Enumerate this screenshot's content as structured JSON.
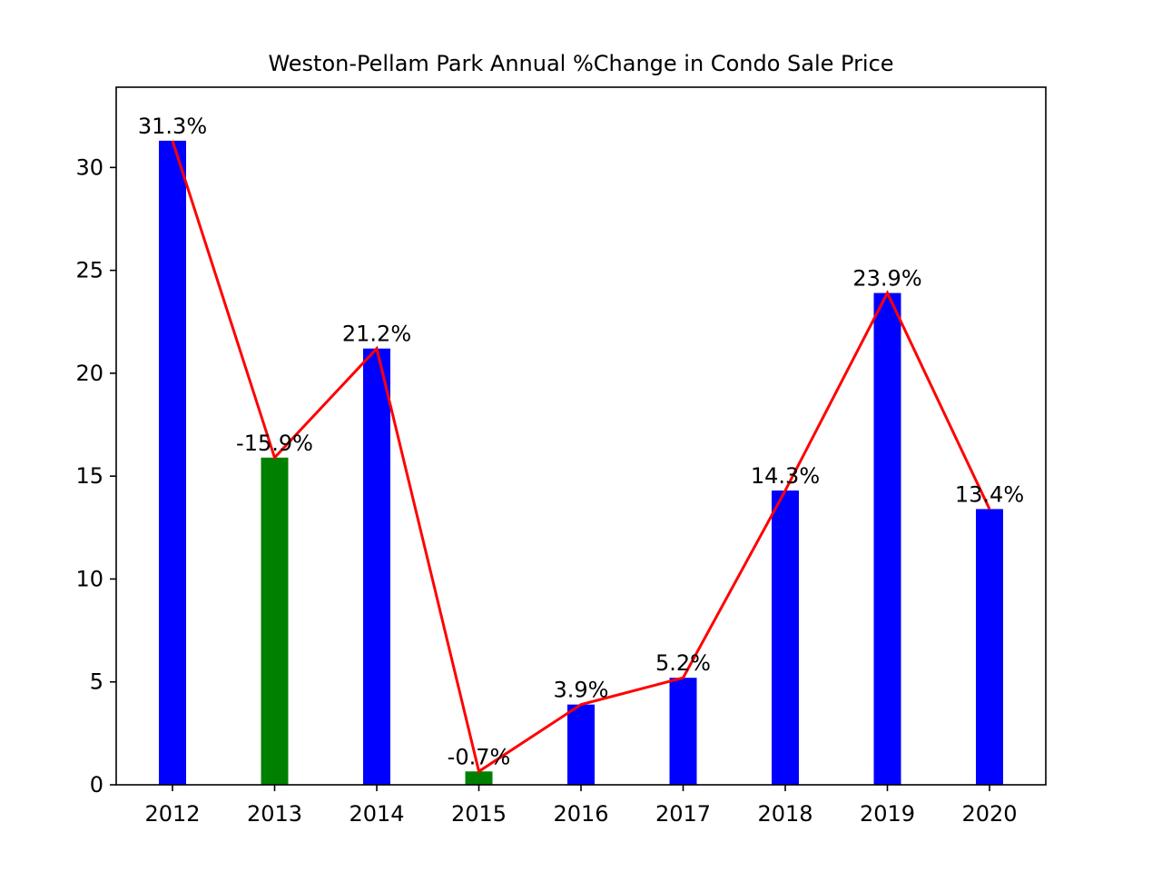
{
  "chart_data": {
    "type": "bar",
    "title": "Weston-Pellam Park Annual %Change in Condo Sale Price",
    "xlabel": "",
    "ylabel": "",
    "categories": [
      "2012",
      "2013",
      "2014",
      "2015",
      "2016",
      "2017",
      "2018",
      "2019",
      "2020"
    ],
    "values": [
      31.3,
      15.9,
      21.2,
      0.65,
      3.9,
      5.2,
      14.3,
      23.9,
      13.4
    ],
    "bar_labels": [
      "31.3%",
      "-15.9%",
      "21.2%",
      "-0.7%",
      "3.9%",
      "5.2%",
      "14.3%",
      "23.9%",
      "13.4%"
    ],
    "bar_colors": [
      "#0000ff",
      "#008000",
      "#0000ff",
      "#008000",
      "#0000ff",
      "#0000ff",
      "#0000ff",
      "#0000ff",
      "#0000ff"
    ],
    "overlay_line": {
      "values": [
        31.3,
        15.9,
        21.2,
        0.65,
        3.9,
        5.2,
        14.3,
        23.9,
        13.4
      ],
      "color": "#ff0000"
    },
    "yticks": [
      0,
      5,
      10,
      15,
      20,
      25,
      30
    ],
    "ylim": [
      0,
      33.9
    ],
    "grid": false,
    "legend": "none"
  }
}
